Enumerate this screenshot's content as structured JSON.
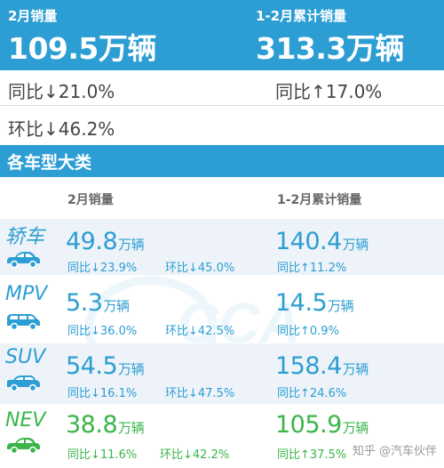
{
  "header": {
    "left_label": "2月销量",
    "left_value": "109.5万辆",
    "right_label": "1-2月累计销量",
    "right_value": "313.3万辆"
  },
  "summary": {
    "left_yoy": "同比↓21.0%",
    "right_yoy": "同比↑17.0%",
    "left_mom": "环比↓46.2%"
  },
  "section_title": "各车型大类",
  "columns": {
    "feb": "2月销量",
    "ytd": "1-2月累计销量"
  },
  "rows": [
    {
      "name": "轿车",
      "feb_value": "49.8",
      "unit": "万辆",
      "feb_yoy": "同比↓23.9%",
      "feb_mom": "环比↓45.0%",
      "ytd_value": "140.4",
      "ytd_yoy": "同比↑11.2%"
    },
    {
      "name": "MPV",
      "feb_value": "5.3",
      "unit": "万辆",
      "feb_yoy": "同比↓36.0%",
      "feb_mom": "环比↓42.5%",
      "ytd_value": "14.5",
      "ytd_yoy": "同比↑0.9%"
    },
    {
      "name": "SUV",
      "feb_value": "54.5",
      "unit": "万辆",
      "feb_yoy": "同比↓16.1%",
      "feb_mom": "环比↓47.5%",
      "ytd_value": "158.4",
      "ytd_yoy": "同比↑24.6%"
    },
    {
      "name": "NEV",
      "feb_value": "38.8",
      "unit": "万辆",
      "feb_yoy": "同比↓11.6%",
      "feb_mom": "环比↓42.2%",
      "ytd_value": "105.9",
      "ytd_yoy": "同比↑37.5%"
    }
  ],
  "watermark_text": "CCA",
  "credit": "知乎 @汽车伙伴",
  "colors": {
    "primary": "#2c9ed3",
    "nev": "#3ab54a"
  },
  "icons": [
    "sedan-icon",
    "mpv-icon",
    "suv-icon",
    "nev-car-icon"
  ]
}
